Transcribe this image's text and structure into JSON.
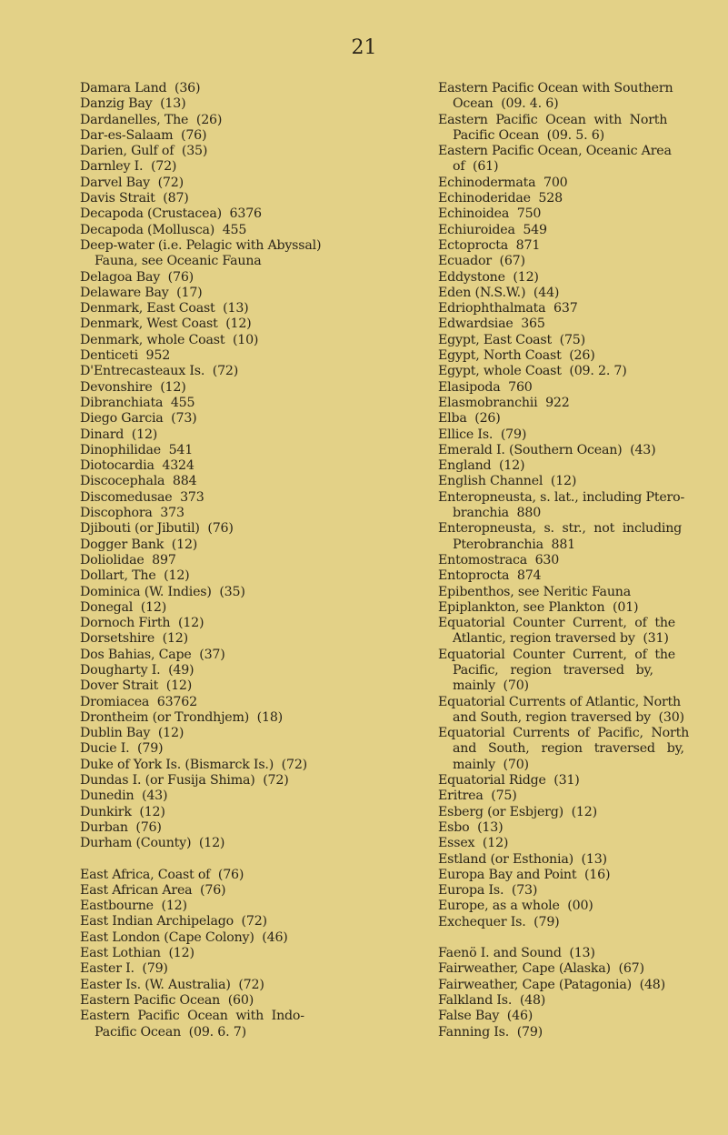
{
  "page_number": "21",
  "left_column": [
    [
      "Damara Land  (36)"
    ],
    [
      "Danzig Bay  (13)"
    ],
    [
      "Dardanelles, The  (26)"
    ],
    [
      "Dar-es-Salaam  (76)"
    ],
    [
      "Darien, Gulf of  (35)"
    ],
    [
      "Darnley I.  (72)"
    ],
    [
      "Darvel Bay  (72)"
    ],
    [
      "Davis Strait  (87)"
    ],
    [
      "Decapoda (Crustacea)  6376"
    ],
    [
      "Decapoda (Mollusca)  455"
    ],
    [
      "Deep-water (i.e. Pelagic with Abyssal)",
      "Fauna, see Oceanic Fauna"
    ],
    [
      "Delagoa Bay  (76)"
    ],
    [
      "Delaware Bay  (17)"
    ],
    [
      "Denmark, East Coast  (13)"
    ],
    [
      "Denmark, West Coast  (12)"
    ],
    [
      "Denmark, whole Coast  (10)"
    ],
    [
      "Denticeti  952"
    ],
    [
      "D'Entrecasteaux Is.  (72)"
    ],
    [
      "Devonshire  (12)"
    ],
    [
      "Dibranchiata  455"
    ],
    [
      "Diego Garcia  (73)"
    ],
    [
      "Dinard  (12)"
    ],
    [
      "Dinophilidae  541"
    ],
    [
      "Diotocardia  4324"
    ],
    [
      "Discocephala  884"
    ],
    [
      "Discomedusae  373"
    ],
    [
      "Discophora  373"
    ],
    [
      "Djibouti (or Jibutil)  (76)"
    ],
    [
      "Dogger Bank  (12)"
    ],
    [
      "Doliolidae  897"
    ],
    [
      "Dollart, The  (12)"
    ],
    [
      "Dominica (W. Indies)  (35)"
    ],
    [
      "Donegal  (12)"
    ],
    [
      "Dornoch Firth  (12)"
    ],
    [
      "Dorsetshire  (12)"
    ],
    [
      "Dos Bahias, Cape  (37)"
    ],
    [
      "Dougharty I.  (49)"
    ],
    [
      "Dover Strait  (12)"
    ],
    [
      "Dromiacea  63762"
    ],
    [
      "Drontheim (or Trondhjem)  (18)"
    ],
    [
      "Dublin Bay  (12)"
    ],
    [
      "Ducie I.  (79)"
    ],
    [
      "Duke of York Is. (Bismarck Is.)  (72)"
    ],
    [
      "Dundas I. (or Fusija Shima)  (72)"
    ],
    [
      "Dunedin  (43)"
    ],
    [
      "Dunkirk  (12)"
    ],
    [
      "Durban  (76)"
    ],
    [
      "Durham (County)  (12)"
    ],
    null,
    [
      "East Africa, Coast of  (76)"
    ],
    [
      "East African Area  (76)"
    ],
    [
      "Eastbourne  (12)"
    ],
    [
      "East Indian Archipelago  (72)"
    ],
    [
      "East London (Cape Colony)  (46)"
    ],
    [
      "East Lothian  (12)"
    ],
    [
      "Easter I.  (79)"
    ],
    [
      "Easter Is. (W. Australia)  (72)"
    ],
    [
      "Eastern Pacific Ocean  (60)"
    ],
    [
      "Eastern  Pacific  Ocean  with  Indo-",
      "Pacific Ocean  (09. 6. 7)"
    ]
  ],
  "right_column": [
    [
      "Eastern Pacific Ocean with Southern",
      "Ocean  (09. 4. 6)"
    ],
    [
      "Eastern  Pacific  Ocean  with  North",
      "Pacific Ocean  (09. 5. 6)"
    ],
    [
      "Eastern Pacific Ocean, Oceanic Area",
      "of  (61)"
    ],
    [
      "Echinodermata  700"
    ],
    [
      "Echinoderidae  528"
    ],
    [
      "Echinoidea  750"
    ],
    [
      "Echiuroidea  549"
    ],
    [
      "Ectoprocta  871"
    ],
    [
      "Ecuador  (67)"
    ],
    [
      "Eddystone  (12)"
    ],
    [
      "Eden (N.S.W.)  (44)"
    ],
    [
      "Edriophthalmata  637"
    ],
    [
      "Edwardsiae  365"
    ],
    [
      "Egypt, East Coast  (75)"
    ],
    [
      "Egypt, North Coast  (26)"
    ],
    [
      "Egypt, whole Coast  (09. 2. 7)"
    ],
    [
      "Elasipoda  760"
    ],
    [
      "Elasmobranchii  922"
    ],
    [
      "Elba  (26)"
    ],
    [
      "Ellice Is.  (79)"
    ],
    [
      "Emerald I. (Southern Ocean)  (43)"
    ],
    [
      "England  (12)"
    ],
    [
      "English Channel  (12)"
    ],
    [
      "Enteropneusta, s. lat., including Ptero-",
      "branchia  880"
    ],
    [
      "Enteropneusta,  s.  str.,  not  including",
      "Pterobranchia  881"
    ],
    [
      "Entomostraca  630"
    ],
    [
      "Entoprocta  874"
    ],
    [
      "Epibenthos, see Neritic Fauna"
    ],
    [
      "Epiplankton, see Plankton  (01)"
    ],
    [
      "Equatorial  Counter  Current,  of  the",
      "Atlantic, region traversed by  (31)"
    ],
    [
      "Equatorial  Counter  Current,  of  the",
      "Pacific,   region   traversed   by,",
      "mainly  (70)"
    ],
    [
      "Equatorial Currents of Atlantic, North",
      "and South, region traversed by  (30)"
    ],
    [
      "Equatorial  Currents  of  Pacific,  North",
      "and   South,   region   traversed   by,",
      "mainly  (70)"
    ],
    [
      "Equatorial Ridge  (31)"
    ],
    [
      "Eritrea  (75)"
    ],
    [
      "Esberg (or Esbjerg)  (12)"
    ],
    [
      "Esbo  (13)"
    ],
    [
      "Essex  (12)"
    ],
    [
      "Estland (or Esthonia)  (13)"
    ],
    [
      "Europa Bay and Point  (16)"
    ],
    [
      "Europa Is.  (73)"
    ],
    [
      "Europe, as a whole  (00)"
    ],
    [
      "Exchequer Is.  (79)"
    ],
    null,
    [
      "Faenö I. and Sound  (13)"
    ],
    [
      "Fairweather, Cape (Alaska)  (67)"
    ],
    [
      "Fairweather, Cape (Patagonia)  (48)"
    ],
    [
      "Falkland Is.  (48)"
    ],
    [
      "False Bay  (46)"
    ],
    [
      "Fanning Is.  (79)"
    ]
  ]
}
